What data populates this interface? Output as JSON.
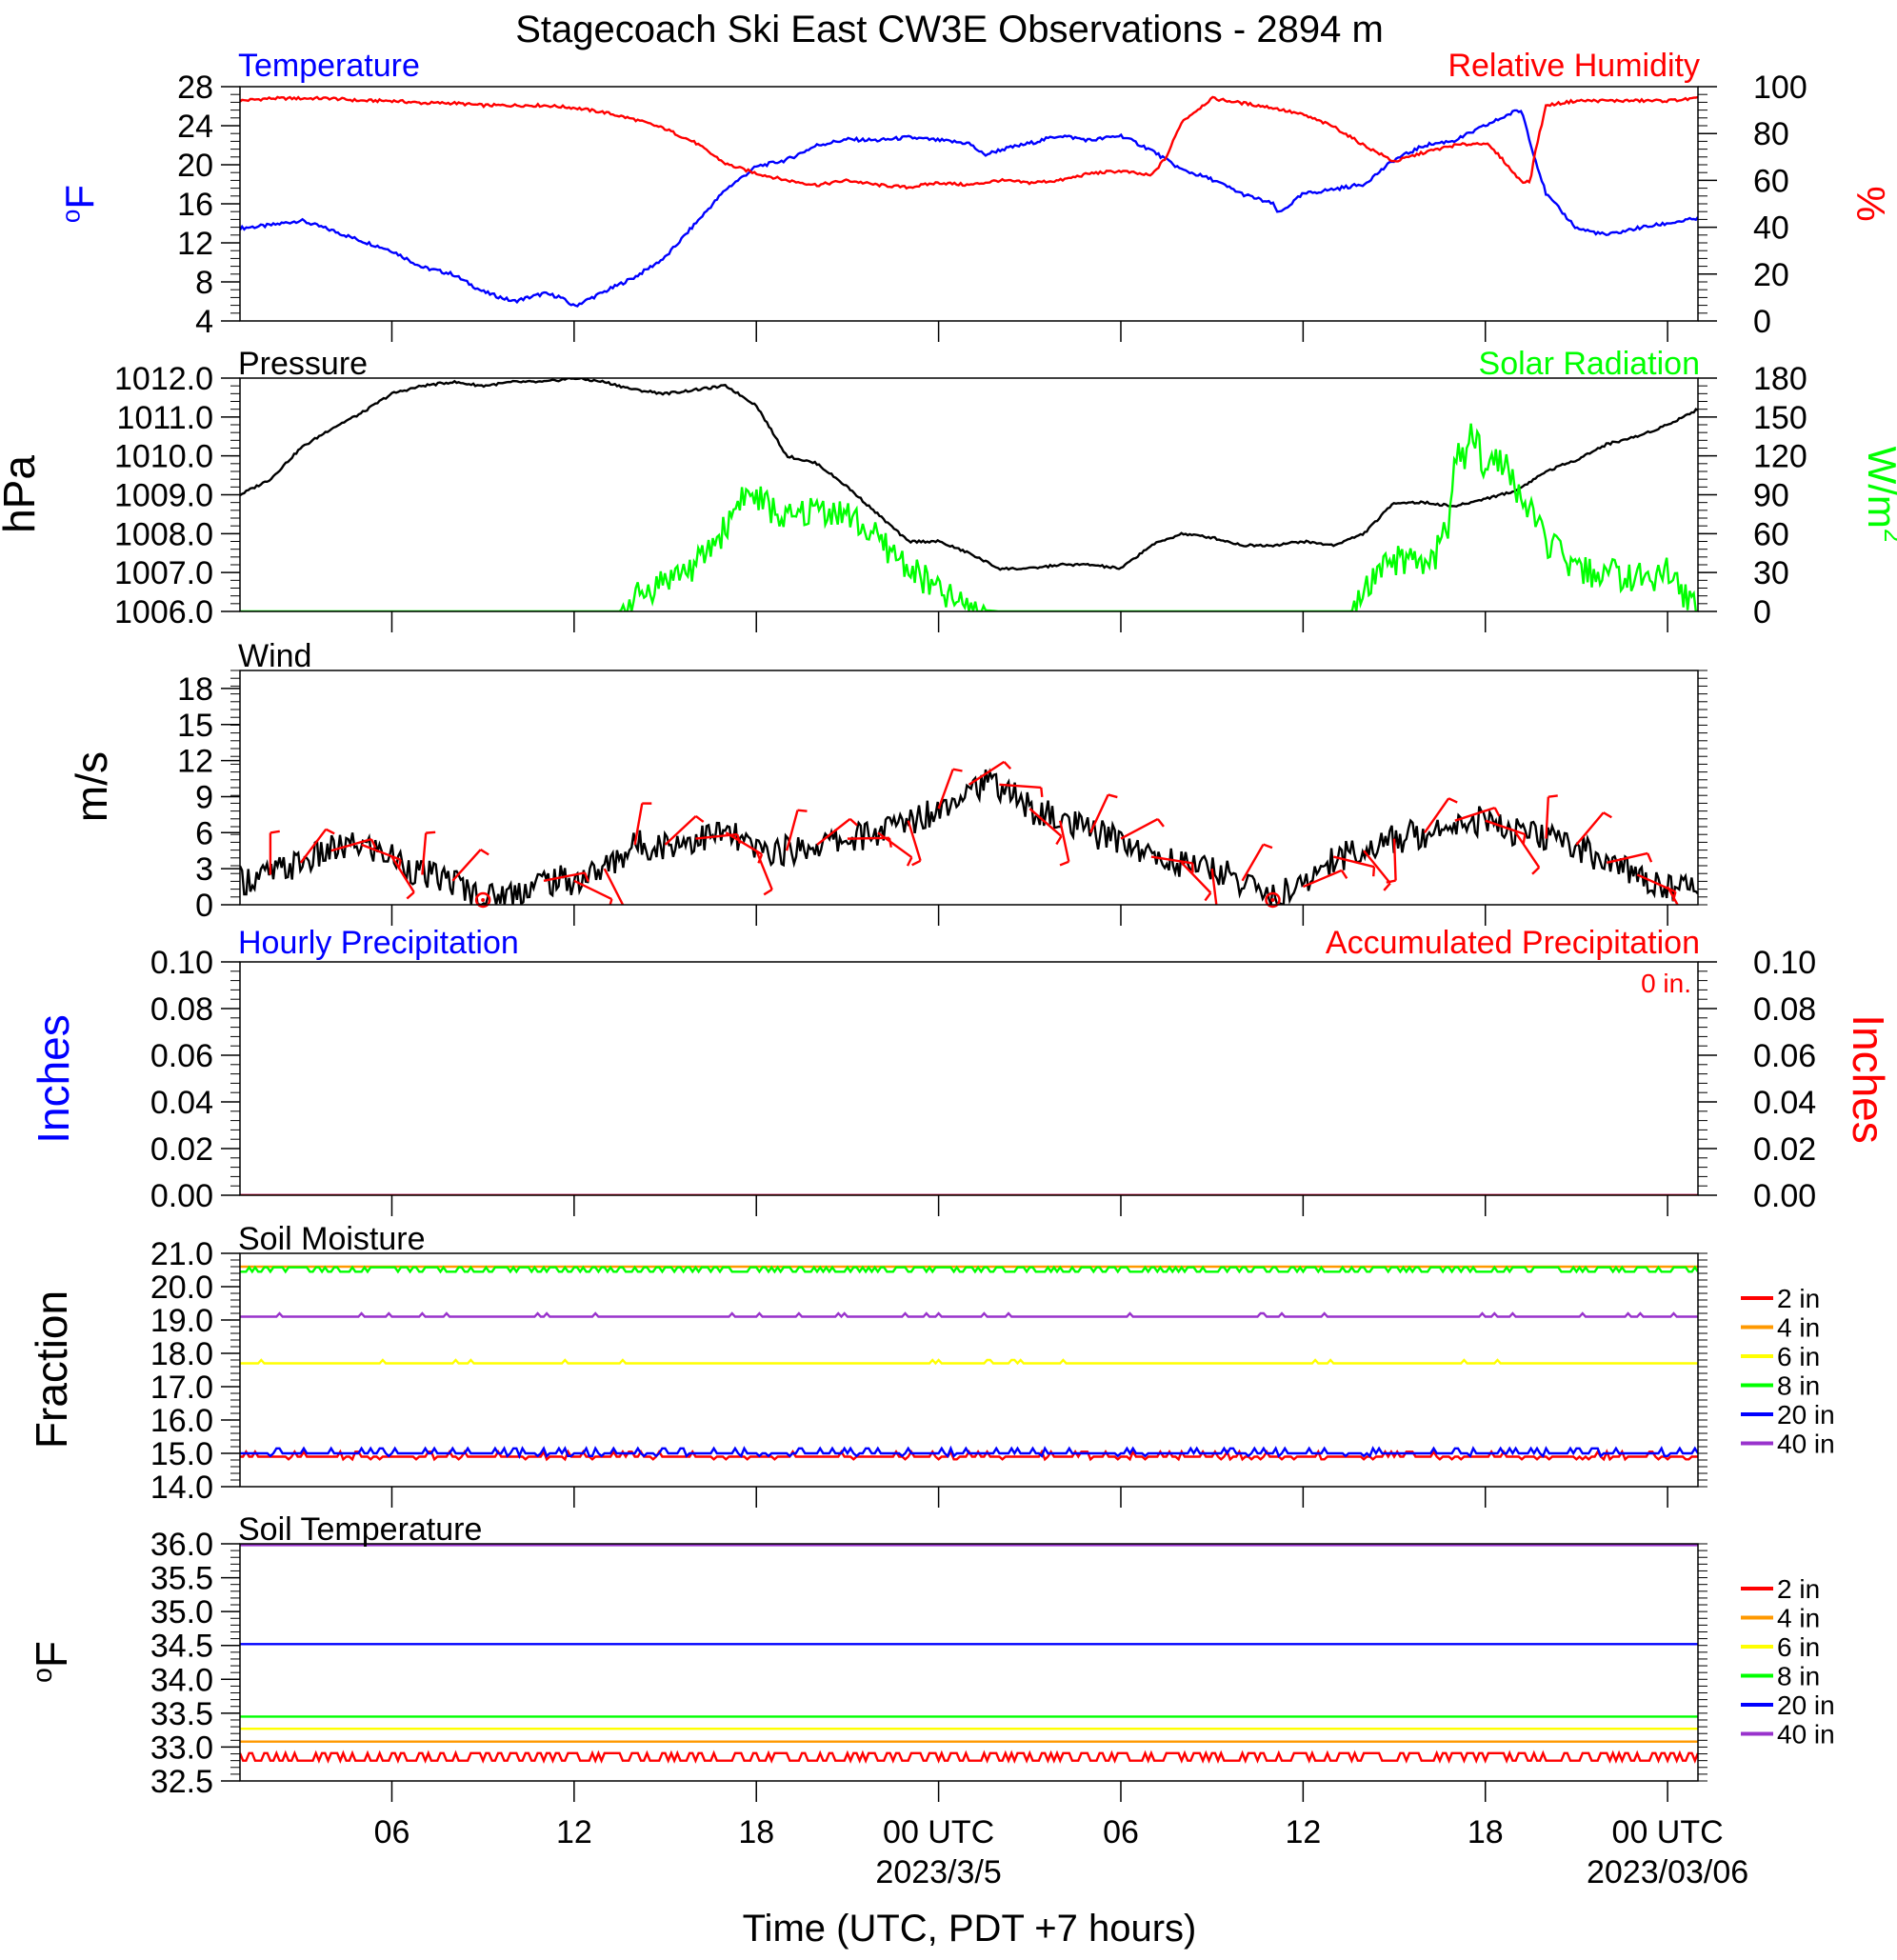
{
  "title": "Stagecoach Ski East CW3E Observations - 2894 m",
  "xaxis": {
    "label": "Time (UTC, PDT +7 hours)",
    "hour_range": [
      -23,
      25
    ],
    "ticks": [
      {
        "hour": -18,
        "label": "06"
      },
      {
        "hour": -12,
        "label": "12"
      },
      {
        "hour": -6,
        "label": "18"
      },
      {
        "hour": 0,
        "label": "00 UTC"
      },
      {
        "hour": 6,
        "label": "06"
      },
      {
        "hour": 12,
        "label": "12"
      },
      {
        "hour": 18,
        "label": "18"
      },
      {
        "hour": 24,
        "label": "00 UTC"
      }
    ],
    "date_labels": [
      {
        "hour": 0,
        "label": "2023/3/5"
      },
      {
        "hour": 24,
        "label": "2023/03/06"
      }
    ]
  },
  "colors": {
    "temperature": "#0000ff",
    "humidity": "#ff0000",
    "pressure": "#000000",
    "solar": "#00ff00",
    "wind": "#000000",
    "barb": "#ff0000",
    "precip_hourly": "#0000ff",
    "precip_accum": "#ff0000",
    "depth_2in": "#ff0000",
    "depth_4in": "#ff9900",
    "depth_6in": "#ffff00",
    "depth_8in": "#00ff00",
    "depth_20in": "#0000ff",
    "depth_40in": "#9933cc"
  },
  "chart_data": [
    {
      "type": "line",
      "panel": "temperature-humidity",
      "left_title": "Temperature",
      "right_title": "Relative Humidity",
      "ylabel_left": "oF",
      "ylabel_right": "%",
      "ylim_left": [
        4,
        28
      ],
      "ylim_right": [
        0,
        100
      ],
      "yticks_left": [
        4,
        8,
        12,
        16,
        20,
        24,
        28
      ],
      "yticks_right": [
        0,
        20,
        40,
        60,
        80,
        100
      ],
      "series": [
        {
          "name": "Temperature",
          "axis": "left",
          "color_key": "temperature",
          "x": [
            -23,
            -22,
            -21,
            -20,
            -19,
            -18,
            -17,
            -16,
            -15,
            -14,
            -13,
            -12.5,
            -12,
            -11,
            -10,
            -9,
            -8,
            -7,
            -6,
            -5,
            -4,
            -3,
            -2,
            -1,
            0,
            1,
            1.5,
            2,
            3,
            4,
            5,
            6,
            7,
            8,
            9,
            10,
            11,
            11.2,
            12,
            13,
            14,
            15,
            16,
            17,
            18,
            19,
            19.2,
            19.6,
            20,
            21,
            22,
            23,
            24,
            25
          ],
          "y": [
            13.5,
            13.8,
            14.3,
            13.3,
            12.2,
            11.2,
            9.5,
            8.8,
            7.0,
            6.0,
            6.8,
            6.5,
            5.5,
            7.0,
            8.5,
            10.5,
            14.0,
            17.5,
            19.8,
            20.5,
            22.0,
            22.6,
            22.5,
            22.8,
            22.5,
            22.2,
            21.0,
            21.5,
            22.2,
            23.0,
            22.5,
            23.0,
            21.5,
            19.5,
            18.5,
            17.0,
            16.0,
            15.0,
            17.0,
            17.5,
            18.0,
            20.5,
            22.0,
            22.5,
            24.0,
            25.5,
            25.5,
            21.0,
            17.0,
            13.5,
            12.8,
            13.5,
            14.0,
            14.5
          ]
        },
        {
          "name": "Relative Humidity",
          "axis": "right",
          "color_key": "humidity",
          "x": [
            -23,
            -22,
            -21,
            -20,
            -19,
            -18,
            -17,
            -16,
            -15,
            -14,
            -13,
            -12,
            -11,
            -10,
            -9,
            -8,
            -7,
            -6,
            -5,
            -4,
            -3,
            -2,
            -1,
            0,
            1,
            2,
            3,
            4,
            5,
            6,
            7,
            7.5,
            8,
            9,
            10,
            11,
            12,
            13,
            14,
            15,
            16,
            17,
            18,
            18.5,
            19,
            19.3,
            19.5,
            19.6,
            20,
            21,
            22,
            23,
            24,
            25
          ],
          "y": [
            94,
            95,
            95,
            95,
            94,
            94,
            93,
            93,
            92,
            92,
            92,
            91,
            89,
            86,
            82,
            76,
            67,
            63,
            60,
            58,
            60,
            58,
            57,
            59,
            58,
            60,
            59,
            60,
            63,
            64,
            62,
            70,
            85,
            95,
            93,
            91,
            88,
            83,
            75,
            68,
            72,
            75,
            76,
            70,
            62,
            59,
            60,
            70,
            92,
            94,
            94,
            94,
            94,
            95
          ]
        }
      ]
    },
    {
      "type": "line",
      "panel": "pressure-solar",
      "left_title": "Pressure",
      "right_title": "Solar Radiation",
      "ylabel_left": "hPa",
      "ylabel_right": "W/m2",
      "ylim_left": [
        1006.0,
        1012.0
      ],
      "ylim_right": [
        0,
        180
      ],
      "yticks_left": [
        "1006.0",
        "1007.0",
        "1008.0",
        "1009.0",
        "1010.0",
        "1011.0",
        "1012.0"
      ],
      "yticks_right": [
        0,
        30,
        60,
        90,
        120,
        150,
        180
      ],
      "series": [
        {
          "name": "Pressure",
          "axis": "left",
          "color_key": "pressure",
          "x": [
            -23,
            -22,
            -21,
            -20,
            -19,
            -18,
            -17,
            -16,
            -15,
            -14,
            -13,
            -12,
            -11,
            -10,
            -9,
            -8,
            -7,
            -6,
            -5,
            -4,
            -3,
            -2,
            -1,
            0,
            1,
            2,
            3,
            4,
            5,
            6,
            7,
            8,
            9,
            10,
            11,
            12,
            13,
            14,
            15,
            16,
            17,
            18,
            19,
            20,
            21,
            22,
            23,
            24,
            25
          ],
          "y": [
            1009.0,
            1009.4,
            1010.2,
            1010.7,
            1011.1,
            1011.6,
            1011.8,
            1011.9,
            1011.8,
            1011.9,
            1011.9,
            1012.0,
            1011.9,
            1011.7,
            1011.6,
            1011.7,
            1011.8,
            1011.3,
            1010.0,
            1009.8,
            1009.2,
            1008.5,
            1007.8,
            1007.8,
            1007.5,
            1007.1,
            1007.1,
            1007.2,
            1007.2,
            1007.1,
            1007.7,
            1008.0,
            1007.9,
            1007.7,
            1007.7,
            1007.8,
            1007.7,
            1008.0,
            1008.8,
            1008.8,
            1008.7,
            1008.9,
            1009.1,
            1009.6,
            1009.9,
            1010.3,
            1010.5,
            1010.8,
            1011.2
          ]
        },
        {
          "name": "Solar Radiation",
          "axis": "right",
          "color_key": "solar",
          "x": [
            -23,
            -10.5,
            -10,
            -9,
            -8,
            -7,
            -6.5,
            -6,
            -5,
            -4,
            -3,
            -2,
            -1,
            0,
            1,
            2,
            13,
            13.6,
            14,
            15,
            16,
            16.3,
            16.8,
            17,
            17.3,
            17.6,
            18,
            18.5,
            19,
            19.5,
            20,
            21,
            22,
            23,
            24,
            25
          ],
          "y": [
            0,
            0,
            10,
            25,
            35,
            65,
            90,
            88,
            70,
            80,
            75,
            55,
            35,
            15,
            2,
            0,
            0,
            0,
            15,
            40,
            35,
            40,
            70,
            120,
            115,
            140,
            110,
            120,
            95,
            75,
            55,
            30,
            30,
            25,
            30,
            0
          ]
        }
      ]
    },
    {
      "type": "line",
      "panel": "wind",
      "left_title": "Wind",
      "ylabel_left": "m/s",
      "ylim_left": [
        0,
        19.5
      ],
      "yticks_left": [
        0,
        3,
        6,
        9,
        12,
        15,
        18
      ],
      "series": [
        {
          "name": "Wind",
          "axis": "left",
          "color_key": "wind",
          "x": [
            -23,
            -22,
            -21,
            -20,
            -19,
            -18,
            -17,
            -16,
            -15,
            -14,
            -13,
            -12,
            -11,
            -10,
            -9,
            -8,
            -7,
            -6,
            -5,
            -4,
            -3,
            -2,
            -1,
            0,
            1,
            2,
            3,
            4,
            5,
            6,
            7,
            8,
            9,
            10,
            11,
            12,
            13,
            14,
            15,
            16,
            17,
            18,
            19,
            20,
            21,
            22,
            23,
            24,
            25
          ],
          "y": [
            2.0,
            2.5,
            3.5,
            4.5,
            5.0,
            4.0,
            2.5,
            2.0,
            0.5,
            1.0,
            2.0,
            2.0,
            3.0,
            5.0,
            5.0,
            5.5,
            6.0,
            4.5,
            4.5,
            5.0,
            5.5,
            6.0,
            7.0,
            8.0,
            10.0,
            10.0,
            8.0,
            7.0,
            6.0,
            5.5,
            4.0,
            3.5,
            3.0,
            2.0,
            0.5,
            1.5,
            4.0,
            4.5,
            5.5,
            6.0,
            7.0,
            7.0,
            6.0,
            5.5,
            5.0,
            3.5,
            2.5,
            1.5,
            1.5
          ]
        }
      ],
      "calm_hours": [
        -15,
        11
      ],
      "barb_hours": [
        -22,
        -21,
        -20,
        -19,
        -18,
        -17,
        -16,
        -13,
        -12,
        -11,
        -10,
        -9,
        -8,
        -7,
        -6,
        -5,
        -4,
        -3,
        -2,
        -1,
        0,
        1,
        2,
        3,
        4,
        5,
        6,
        7,
        8,
        9,
        10,
        12,
        13,
        14,
        15,
        16,
        17,
        18,
        19,
        20,
        21,
        22,
        23,
        24
      ]
    },
    {
      "type": "line",
      "panel": "precipitation",
      "left_title": "Hourly Precipitation",
      "right_title": "Accumulated Precipitation",
      "ylabel_left": "Inches",
      "ylabel_right": "Inches",
      "ylim_left": [
        0.0,
        0.1
      ],
      "ylim_right": [
        0.0,
        0.1
      ],
      "yticks_left": [
        "0.00",
        "0.02",
        "0.04",
        "0.06",
        "0.08",
        "0.10"
      ],
      "yticks_right": [
        "0.00",
        "0.02",
        "0.04",
        "0.06",
        "0.08",
        "0.10"
      ],
      "total_label": "0 in.",
      "series": [
        {
          "name": "Hourly Precipitation",
          "axis": "left",
          "color_key": "precip_hourly",
          "x": [
            -23,
            25
          ],
          "y": [
            0,
            0
          ]
        },
        {
          "name": "Accumulated Precipitation",
          "axis": "right",
          "color_key": "precip_accum",
          "x": [
            -23,
            25
          ],
          "y": [
            0,
            0
          ]
        }
      ]
    },
    {
      "type": "line",
      "panel": "soil-moisture",
      "left_title": "Soil Moisture",
      "ylabel_left": "Fraction",
      "ylim_left": [
        14.0,
        21.0
      ],
      "yticks_left": [
        "14.0",
        "15.0",
        "16.0",
        "17.0",
        "18.0",
        "19.0",
        "20.0",
        "21.0"
      ],
      "series": [
        {
          "name": "2 in",
          "color_key": "depth_2in",
          "x": [
            -23,
            25
          ],
          "y": [
            14.9,
            14.9
          ]
        },
        {
          "name": "4 in",
          "color_key": "depth_4in",
          "x": [
            -23,
            25
          ],
          "y": [
            20.6,
            20.6
          ]
        },
        {
          "name": "6 in",
          "color_key": "depth_6in",
          "x": [
            -23,
            25
          ],
          "y": [
            17.7,
            17.7
          ]
        },
        {
          "name": "8 in",
          "color_key": "depth_8in",
          "x": [
            -23,
            25
          ],
          "y": [
            20.5,
            20.5
          ]
        },
        {
          "name": "20 in",
          "color_key": "depth_20in",
          "x": [
            -23,
            25
          ],
          "y": [
            15.0,
            15.0
          ]
        },
        {
          "name": "40 in",
          "color_key": "depth_40in",
          "x": [
            -23,
            25
          ],
          "y": [
            19.1,
            19.1
          ]
        }
      ]
    },
    {
      "type": "line",
      "panel": "soil-temperature",
      "left_title": "Soil Temperature",
      "ylabel_left": "oF",
      "ylim_left": [
        32.5,
        36.0
      ],
      "yticks_left": [
        "32.5",
        "33.0",
        "33.5",
        "34.0",
        "34.5",
        "35.0",
        "35.5",
        "36.0"
      ],
      "series": [
        {
          "name": "2 in",
          "color_key": "depth_2in",
          "x": [
            -23,
            25
          ],
          "y": [
            32.85,
            32.85
          ]
        },
        {
          "name": "4 in",
          "color_key": "depth_4in",
          "x": [
            -23,
            25
          ],
          "y": [
            33.08,
            33.08
          ]
        },
        {
          "name": "6 in",
          "color_key": "depth_6in",
          "x": [
            -23,
            25
          ],
          "y": [
            33.27,
            33.27
          ]
        },
        {
          "name": "8 in",
          "color_key": "depth_8in",
          "x": [
            -23,
            25
          ],
          "y": [
            33.45,
            33.45
          ]
        },
        {
          "name": "20 in",
          "color_key": "depth_20in",
          "x": [
            -23,
            25
          ],
          "y": [
            34.52,
            34.52
          ]
        },
        {
          "name": "40 in",
          "color_key": "depth_40in",
          "x": [
            -23,
            25
          ],
          "y": [
            35.98,
            35.98
          ]
        }
      ]
    }
  ]
}
